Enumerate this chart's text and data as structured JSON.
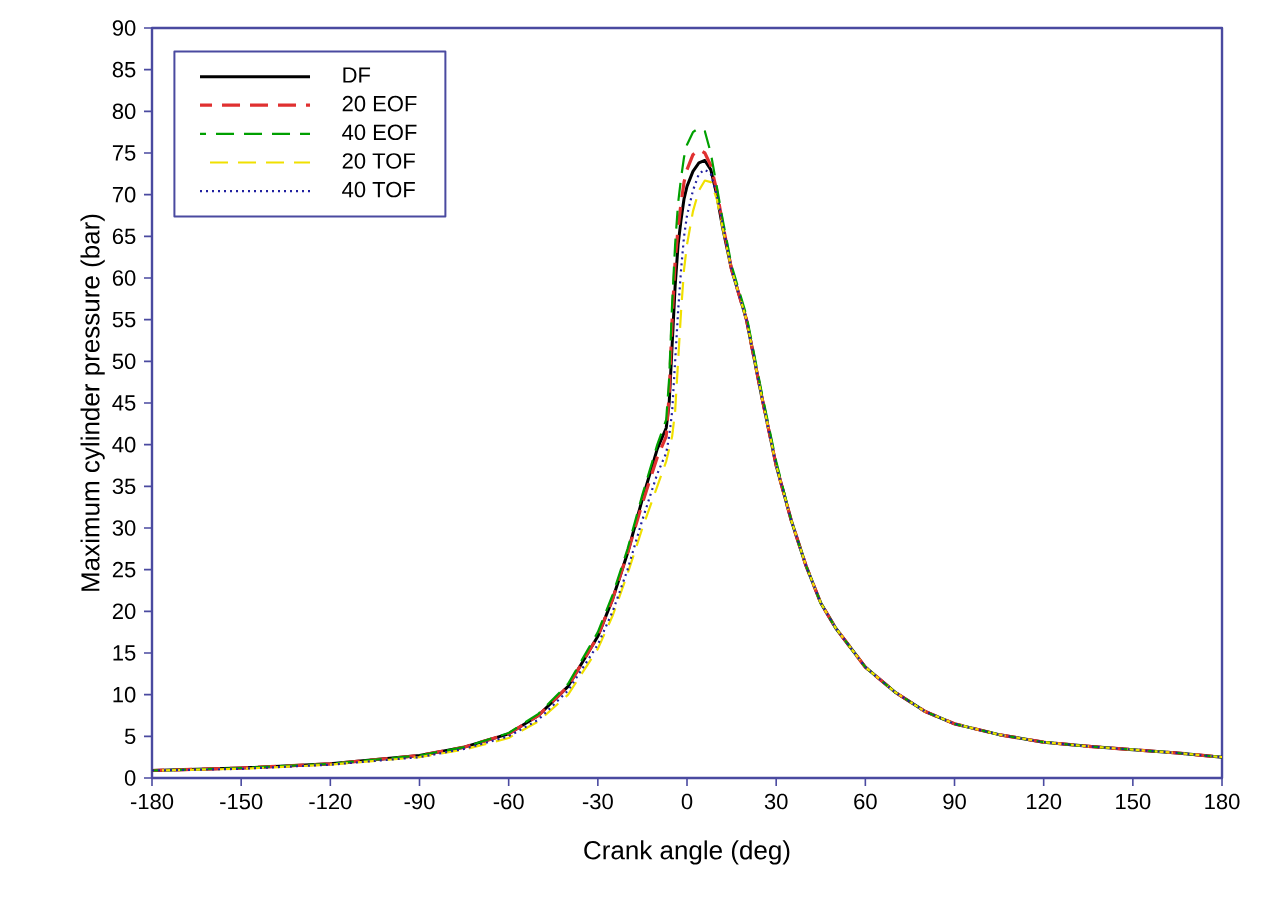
{
  "chart_data": {
    "type": "line",
    "xlabel": "Crank angle (deg)",
    "ylabel": "Maximum cylinder pressure (bar)",
    "xlim": [
      -180,
      180
    ],
    "ylim": [
      0,
      90
    ],
    "xticks": [
      -180,
      -150,
      -120,
      -90,
      -60,
      -30,
      0,
      30,
      60,
      90,
      120,
      150,
      180
    ],
    "yticks": [
      0,
      5,
      10,
      15,
      20,
      25,
      30,
      35,
      40,
      45,
      50,
      55,
      60,
      65,
      70,
      75,
      80,
      85,
      90
    ],
    "legend": "top left",
    "grid": false,
    "marker": "none",
    "x": [
      -180,
      -150,
      -120,
      -90,
      -75,
      -60,
      -50,
      -40,
      -30,
      -25,
      -20,
      -15,
      -10,
      -7,
      -6,
      -5,
      -4,
      -3,
      -2,
      -1,
      0,
      2,
      4,
      6,
      8,
      10,
      12,
      15,
      20,
      25,
      30,
      35,
      40,
      45,
      50,
      60,
      70,
      80,
      90,
      105,
      120,
      135,
      150,
      165,
      180
    ],
    "series": [
      {
        "name": "DF",
        "color": "#000000",
        "line_style": "solid",
        "values": [
          0.9,
          1.2,
          1.7,
          2.7,
          3.7,
          5.3,
          7.5,
          11,
          17,
          21.5,
          27,
          33.5,
          39.5,
          42,
          45,
          52,
          59,
          64,
          67,
          69.5,
          71,
          72.8,
          73.8,
          74.1,
          73,
          70,
          66,
          61,
          55,
          46,
          37.5,
          31,
          25.5,
          21,
          18,
          13.3,
          10.3,
          8,
          6.5,
          5.2,
          4.3,
          3.8,
          3.4,
          3,
          2.5
        ]
      },
      {
        "name": "20 EOF",
        "color": "#e03030",
        "line_style": "dashed",
        "values": [
          0.9,
          1.2,
          1.7,
          2.7,
          3.7,
          5.3,
          7.5,
          11,
          17,
          21.5,
          27,
          33,
          38.5,
          41,
          46,
          55,
          62,
          66,
          69,
          71.5,
          73,
          74.8,
          75.4,
          75,
          73.5,
          70.5,
          66.5,
          61,
          55,
          46,
          37.5,
          31,
          25.5,
          21,
          18,
          13.3,
          10.3,
          8,
          6.5,
          5.2,
          4.3,
          3.8,
          3.4,
          3,
          2.5
        ]
      },
      {
        "name": "40 EOF",
        "color": "#00a000",
        "line_style": "dashed",
        "values": [
          0.9,
          1.2,
          1.7,
          2.7,
          3.7,
          5.4,
          7.7,
          11.3,
          17.5,
          22,
          27.5,
          34,
          40,
          43,
          48,
          57,
          64,
          69,
          72,
          74.5,
          76,
          77.5,
          78,
          77.6,
          75,
          71,
          67,
          61.5,
          55.5,
          46.5,
          38,
          31,
          25.5,
          21,
          18,
          13.3,
          10.3,
          8,
          6.5,
          5.2,
          4.3,
          3.8,
          3.4,
          3,
          2.5
        ]
      },
      {
        "name": "20 TOF",
        "color": "#f0e000",
        "line_style": "dashed",
        "values": [
          0.9,
          1.1,
          1.6,
          2.5,
          3.4,
          4.8,
          6.8,
          10,
          15.5,
          19.5,
          24.5,
          30,
          35,
          38,
          39.5,
          41,
          44,
          50,
          56,
          61,
          64,
          68,
          70.5,
          71.7,
          71.5,
          69.5,
          66,
          61,
          55,
          46,
          37.5,
          31,
          25.5,
          21,
          18,
          13.3,
          10.3,
          8,
          6.5,
          5.2,
          4.3,
          3.8,
          3.4,
          3,
          2.5
        ]
      },
      {
        "name": "40 TOF",
        "color": "#2020a0",
        "line_style": "dotted",
        "values": [
          0.9,
          1.1,
          1.6,
          2.5,
          3.5,
          5,
          7,
          10.5,
          16,
          20,
          25,
          31,
          36.5,
          39,
          41,
          44,
          50,
          56,
          61,
          65,
          67.5,
          70.5,
          72.5,
          73,
          72.5,
          70,
          66.5,
          61,
          55,
          46,
          37.5,
          31,
          25.5,
          21,
          18,
          13.3,
          10.3,
          8,
          6.5,
          5.2,
          4.3,
          3.8,
          3.4,
          3,
          2.5
        ]
      }
    ]
  }
}
